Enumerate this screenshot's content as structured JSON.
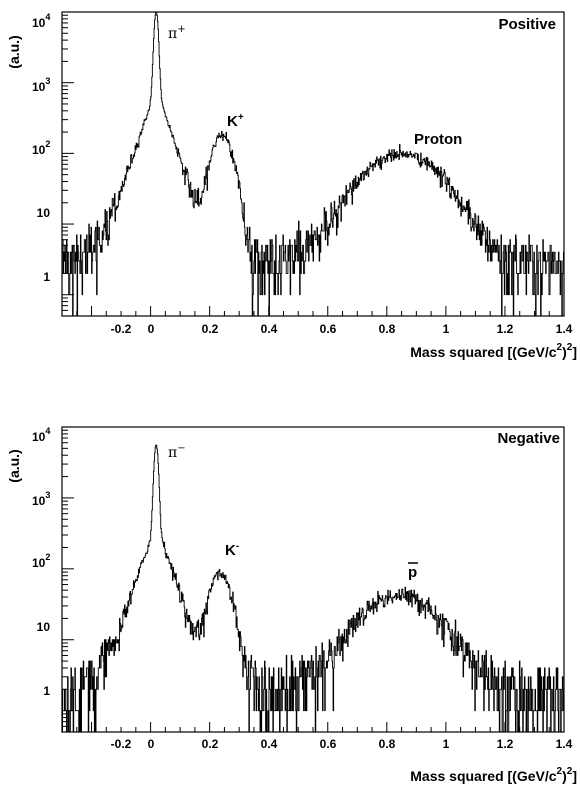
{
  "chart_data": [
    {
      "type": "line",
      "panel_label": "Positive",
      "xlabel": "Mass squared [(GeV/c",
      "xlabel_sup1": "2",
      "xlabel_mid": ")",
      "xlabel_sup2": "2",
      "xlabel_end": "]",
      "ylabel": "(a.u.)",
      "x_ticks": [
        "-0.2",
        "0",
        "0.2",
        "0.4",
        "0.6",
        "0.8",
        "1",
        "1.2",
        "1.4"
      ],
      "y_ticks": [
        {
          "base": "1",
          "exp": ""
        },
        {
          "base": "10",
          "exp": ""
        },
        {
          "base": "10",
          "exp": "2"
        },
        {
          "base": "10",
          "exp": "3"
        },
        {
          "base": "10",
          "exp": "4"
        }
      ],
      "xlim": [
        -0.3,
        1.4
      ],
      "ylim": [
        0.5,
        10000
      ],
      "log_y": true,
      "annotations": {
        "pi": {
          "text": "π",
          "sup": "+"
        },
        "k": {
          "text": "K",
          "sup": "+"
        },
        "p": {
          "text": "Proton"
        }
      },
      "peaks": [
        {
          "x": 0.019,
          "amplitude": 9200,
          "width": 0.006
        },
        {
          "x": 0.243,
          "amplitude": 180,
          "width": 0.03
        },
        {
          "x": 0.85,
          "amplitude": 95,
          "width": 0.11
        }
      ],
      "tail": {
        "amplitude": 850,
        "decay": 0.035
      },
      "background": 3
    },
    {
      "type": "line",
      "panel_label": "Negative",
      "xlabel": "Mass squared [(GeV/c",
      "xlabel_sup1": "2",
      "xlabel_mid": ")",
      "xlabel_sup2": "2",
      "xlabel_end": "]",
      "ylabel": "(a.u.)",
      "x_ticks": [
        "-0.2",
        "0",
        "0.2",
        "0.4",
        "0.6",
        "0.8",
        "1",
        "1.2",
        "1.4"
      ],
      "y_ticks": [
        {
          "base": "1",
          "exp": ""
        },
        {
          "base": "10",
          "exp": ""
        },
        {
          "base": "10",
          "exp": "2"
        },
        {
          "base": "10",
          "exp": "3"
        },
        {
          "base": "10",
          "exp": "4"
        }
      ],
      "xlim": [
        -0.3,
        1.4
      ],
      "ylim": [
        0.5,
        10000
      ],
      "log_y": true,
      "annotations": {
        "pi": {
          "text": "π",
          "sup": "−"
        },
        "k": {
          "text": "K",
          "sup": "-"
        },
        "p": {
          "text": "p"
        }
      },
      "peaks": [
        {
          "x": 0.019,
          "amplitude": 5200,
          "width": 0.006
        },
        {
          "x": 0.236,
          "amplitude": 85,
          "width": 0.03
        },
        {
          "x": 0.84,
          "amplitude": 40,
          "width": 0.11
        }
      ],
      "tail": {
        "amplitude": 450,
        "decay": 0.035
      },
      "background": 2
    }
  ]
}
